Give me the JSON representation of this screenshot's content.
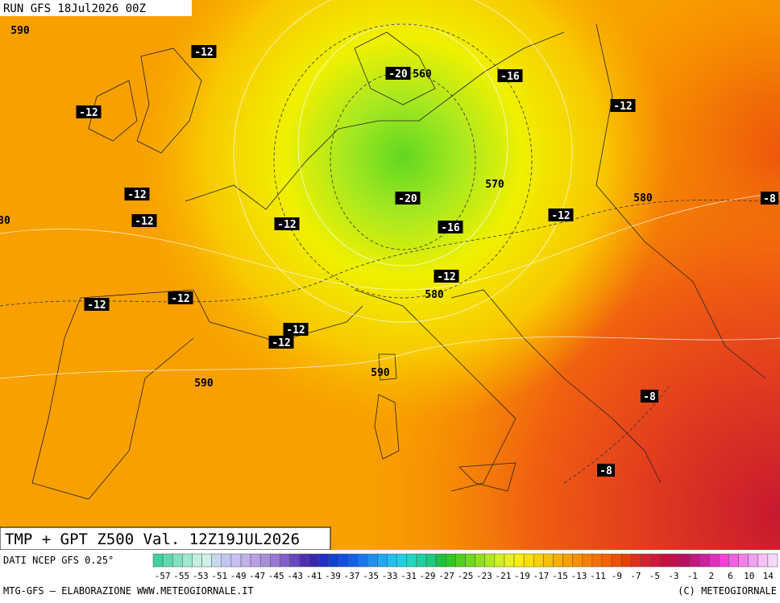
{
  "header": {
    "run": "RUN GFS 18Jul2026 00Z",
    "title": "TMP + GPT Z500 Val. 12Z19JUL2026"
  },
  "map_labels": [
    {
      "text": "590",
      "boxed": false
    },
    {
      "text": "-12",
      "boxed": true
    },
    {
      "text": "-20",
      "boxed": true
    },
    {
      "text": "560",
      "boxed": false
    },
    {
      "text": "-16",
      "boxed": true
    },
    {
      "text": "-12",
      "boxed": true
    },
    {
      "text": "-12",
      "boxed": true
    },
    {
      "text": "570",
      "boxed": false
    },
    {
      "text": "-20",
      "boxed": true
    },
    {
      "text": "-12",
      "boxed": true
    },
    {
      "text": "580",
      "boxed": false
    },
    {
      "text": "-8",
      "boxed": true
    },
    {
      "text": "80",
      "boxed": false
    },
    {
      "text": "-12",
      "boxed": true
    },
    {
      "text": "-12",
      "boxed": true
    },
    {
      "text": "-12",
      "boxed": true
    },
    {
      "text": "-16",
      "boxed": true
    },
    {
      "text": "-12",
      "boxed": true
    },
    {
      "text": "580",
      "boxed": false
    },
    {
      "text": "-12",
      "boxed": true
    },
    {
      "text": "-12",
      "boxed": true
    },
    {
      "text": "-12",
      "boxed": true
    },
    {
      "text": "-12",
      "boxed": true
    },
    {
      "text": "590",
      "boxed": false
    },
    {
      "text": "590",
      "boxed": false
    },
    {
      "text": "-8",
      "boxed": true
    },
    {
      "text": "-8",
      "boxed": true
    }
  ],
  "legend": {
    "source": "DATI NCEP GFS 0.25°",
    "labels": [
      "-57",
      "-55",
      "-53",
      "-51",
      "-49",
      "-47",
      "-45",
      "-43",
      "-41",
      "-39",
      "-37",
      "-35",
      "-33",
      "-31",
      "-29",
      "-27",
      "-25",
      "-23",
      "-21",
      "-19",
      "-17",
      "-15",
      "-13",
      "-11",
      "-9",
      "-7",
      "-5",
      "-3",
      "-1",
      "2",
      "6",
      "10",
      "14"
    ],
    "colors": [
      "#40d0a0",
      "#60d8b0",
      "#80e0c0",
      "#a0e8d0",
      "#c0f0e0",
      "#d0f0f0",
      "#c8d8f0",
      "#c0c8f0",
      "#c8c0f0",
      "#c0b0e8",
      "#b8a0e0",
      "#a890d8",
      "#9878d0",
      "#8060c8",
      "#6848c0",
      "#5030b0",
      "#3828b0",
      "#2030c0",
      "#1040d0",
      "#1050e0",
      "#1060e8",
      "#1878f0",
      "#2090f0",
      "#20a8f0",
      "#20c0f0",
      "#20d0e0",
      "#20d8c0",
      "#20d0a0",
      "#20c880",
      "#20c040",
      "#30c820",
      "#50d020",
      "#70d820",
      "#90e020",
      "#b0e820",
      "#d0f020",
      "#e8f020",
      "#f8f000",
      "#f8e000",
      "#f8d000",
      "#f8c000",
      "#f8b000",
      "#f8a000",
      "#f89000",
      "#f88000",
      "#f87000",
      "#f86000",
      "#f05000",
      "#e84000",
      "#e03020",
      "#d82030",
      "#d01838",
      "#c81040",
      "#c01050",
      "#b81060",
      "#c01880",
      "#d020a0",
      "#e030c0",
      "#f040d8",
      "#f060e0",
      "#f080e8",
      "#f0a0f0",
      "#f8c0f8",
      "#f8d8f8"
    ]
  },
  "footer": {
    "left": "MTG-GFS – ELABORAZIONE WWW.METEOGIORNALE.IT",
    "right": "(C) METEOGIORNALE"
  }
}
